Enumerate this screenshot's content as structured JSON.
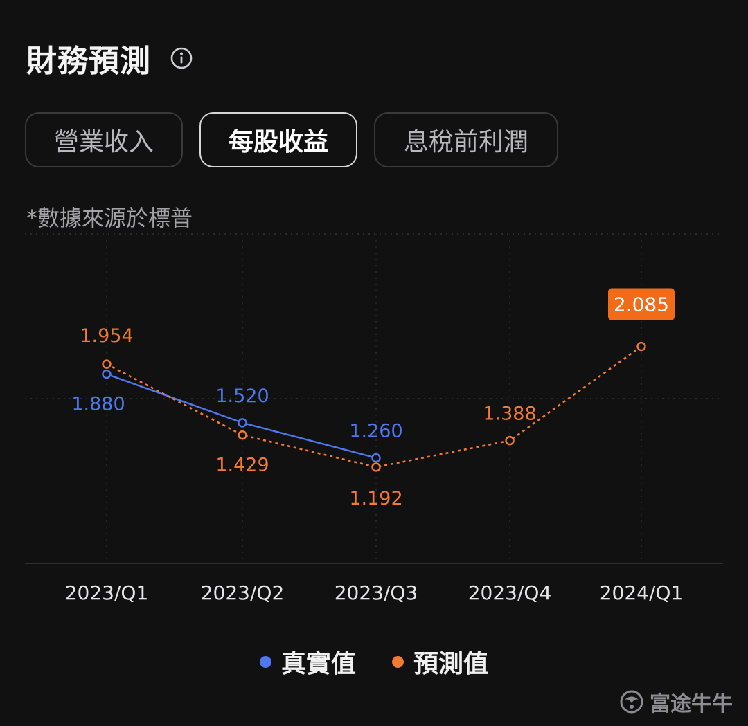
{
  "header": {
    "title": "財務預測"
  },
  "tabs": [
    {
      "label": "營業收入",
      "active": false
    },
    {
      "label": "每股收益",
      "active": true
    },
    {
      "label": "息稅前利潤",
      "active": false
    }
  ],
  "source_note": "*數據來源於標普",
  "legend": {
    "actual": "真實值",
    "forecast": "預測值"
  },
  "watermark": "富途牛牛",
  "colors": {
    "actual": "#4f78f0",
    "forecast": "#f27a33",
    "badge": "#f26b18"
  },
  "chart_data": {
    "type": "line",
    "categories": [
      "2023/Q1",
      "2023/Q2",
      "2023/Q3",
      "2023/Q4",
      "2024/Q1"
    ],
    "series": [
      {
        "name": "真實值",
        "values": [
          1.88,
          1.52,
          1.26,
          null,
          null
        ],
        "labels": [
          "1.880",
          "1.520",
          "1.260",
          "",
          ""
        ],
        "style": "solid"
      },
      {
        "name": "預測值",
        "values": [
          1.954,
          1.429,
          1.192,
          1.388,
          2.085
        ],
        "labels": [
          "1.954",
          "1.429",
          "1.192",
          "1.388",
          "2.085"
        ],
        "style": "dotted"
      }
    ],
    "highlight": {
      "series": 1,
      "index": 4
    },
    "ylim": [
      0.5,
      2.6
    ],
    "legend_position": "bottom",
    "grid": true
  }
}
